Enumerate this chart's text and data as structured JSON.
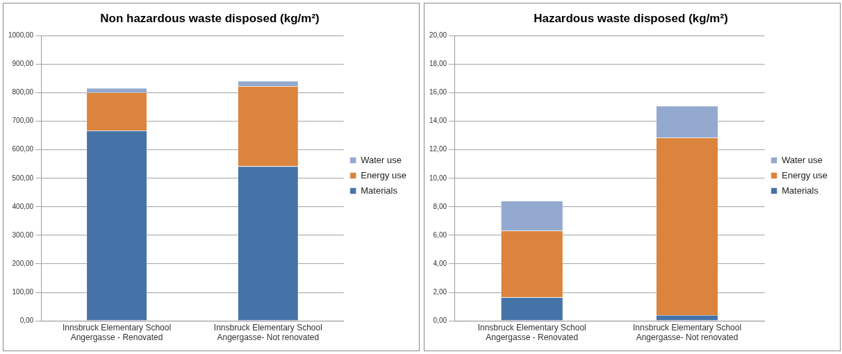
{
  "chart_data": [
    {
      "type": "bar",
      "title": "Non hazardous waste disposed (kg/m²)",
      "stacked": true,
      "legend": "right",
      "grid": "y",
      "categories": [
        "Innsbruck Elementary School Angergasse - Renovated",
        "Innsbruck Elementary School Angergasse- Not renovated"
      ],
      "series": [
        {
          "name": "Materials",
          "color": "#4573a7",
          "values": [
            667,
            542
          ]
        },
        {
          "name": "Energy use",
          "color": "#db843d",
          "values": [
            134,
            281
          ]
        },
        {
          "name": "Water use",
          "color": "#93a9cf",
          "values": [
            15,
            18
          ]
        }
      ],
      "ylim": [
        0,
        1000
      ],
      "yticks": [
        {
          "value": 0,
          "label": "0,00"
        },
        {
          "value": 100,
          "label": "100,00"
        },
        {
          "value": 200,
          "label": "200,00"
        },
        {
          "value": 300,
          "label": "300,00"
        },
        {
          "value": 400,
          "label": "400,00"
        },
        {
          "value": 500,
          "label": "500,00"
        },
        {
          "value": 600,
          "label": "600,00"
        },
        {
          "value": 700,
          "label": "700,00"
        },
        {
          "value": 800,
          "label": "800,00"
        },
        {
          "value": 900,
          "label": "900,00"
        },
        {
          "value": 1000,
          "label": "1000,00"
        }
      ]
    },
    {
      "type": "bar",
      "title": "Hazardous waste disposed (kg/m²)",
      "stacked": true,
      "legend": "right",
      "grid": "y",
      "categories": [
        "Innsbruck Elementary School Angergasse - Renovated",
        "Innsbruck Elementary School Angergasse- Not renovated"
      ],
      "series": [
        {
          "name": "Materials",
          "color": "#4573a7",
          "values": [
            1.65,
            0.4
          ]
        },
        {
          "name": "Energy use",
          "color": "#db843d",
          "values": [
            4.67,
            12.44
          ]
        },
        {
          "name": "Water use",
          "color": "#93a9cf",
          "values": [
            2.09,
            2.23
          ]
        }
      ],
      "ylim": [
        0,
        20
      ],
      "yticks": [
        {
          "value": 0,
          "label": "0,00"
        },
        {
          "value": 2,
          "label": "2,00"
        },
        {
          "value": 4,
          "label": "4,00"
        },
        {
          "value": 6,
          "label": "6,00"
        },
        {
          "value": 8,
          "label": "8,00"
        },
        {
          "value": 10,
          "label": "10,00"
        },
        {
          "value": 12,
          "label": "12,00"
        },
        {
          "value": 14,
          "label": "14,00"
        },
        {
          "value": 16,
          "label": "16,00"
        },
        {
          "value": 18,
          "label": "18,00"
        },
        {
          "value": 20,
          "label": "20,00"
        }
      ]
    }
  ]
}
